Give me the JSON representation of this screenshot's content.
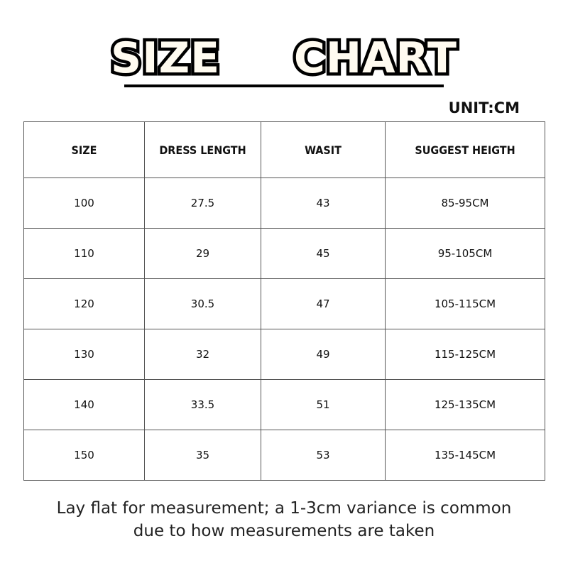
{
  "title": {
    "word1": "SIZE",
    "word2": "CHART"
  },
  "unit": "UNIT:CM",
  "table": {
    "headers": [
      "SIZE",
      "DRESS LENGTH",
      "WASIT",
      "SUGGEST HEIGTH"
    ],
    "rows": [
      [
        "100",
        "27.5",
        "43",
        "85-95CM"
      ],
      [
        "110",
        "29",
        "45",
        "95-105CM"
      ],
      [
        "120",
        "30.5",
        "47",
        "105-115CM"
      ],
      [
        "130",
        "32",
        "49",
        "115-125CM"
      ],
      [
        "140",
        "33.5",
        "51",
        "125-135CM"
      ],
      [
        "150",
        "35",
        "53",
        "135-145CM"
      ]
    ]
  },
  "note": {
    "line1": "Lay flat for measurement; a 1-3cm variance is common",
    "line2": "due to how measurements are taken"
  }
}
